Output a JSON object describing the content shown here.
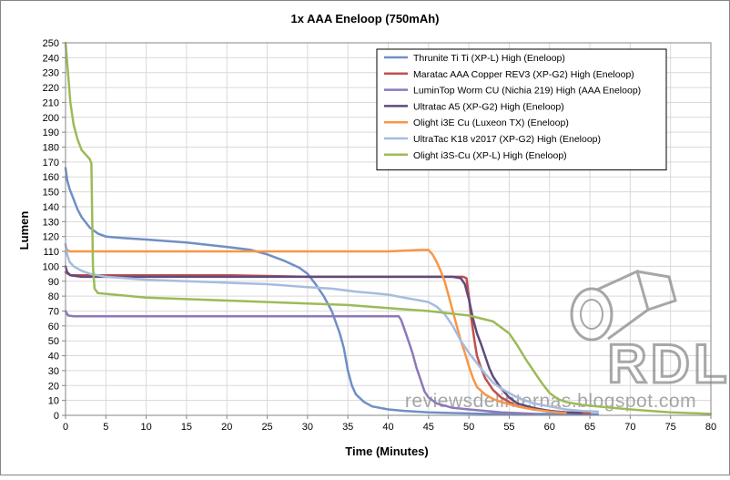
{
  "chart_data": {
    "type": "line",
    "title": "1x AAA Eneloop (750mAh)",
    "xlabel": "Time (Minutes)",
    "ylabel": "Lumen",
    "xlim": [
      0,
      80
    ],
    "ylim": [
      0,
      250
    ],
    "xticks": [
      0,
      5,
      10,
      15,
      20,
      25,
      30,
      35,
      40,
      45,
      50,
      55,
      60,
      65,
      70,
      75,
      80
    ],
    "yticks": [
      0,
      10,
      20,
      30,
      40,
      50,
      60,
      70,
      80,
      90,
      100,
      110,
      120,
      130,
      140,
      150,
      160,
      170,
      180,
      190,
      200,
      210,
      220,
      230,
      240,
      250
    ],
    "grid": true,
    "legend_position": "top-right",
    "watermark": {
      "logo_text": "RDL",
      "url": "reviewsdelinternas.blogspot.com"
    },
    "series": [
      {
        "name": "Thrunite Ti Ti (XP-L) High (Eneloop)",
        "color": "#6F8FC6",
        "points": [
          [
            0,
            166
          ],
          [
            0.2,
            158
          ],
          [
            0.5,
            152
          ],
          [
            1,
            145
          ],
          [
            1.5,
            138
          ],
          [
            2,
            133
          ],
          [
            3,
            126
          ],
          [
            4,
            122
          ],
          [
            5,
            120
          ],
          [
            7,
            119
          ],
          [
            10,
            118
          ],
          [
            15,
            116
          ],
          [
            20,
            113
          ],
          [
            23,
            111
          ],
          [
            25,
            108
          ],
          [
            27,
            104
          ],
          [
            29,
            99
          ],
          [
            30,
            95
          ],
          [
            31,
            88
          ],
          [
            32,
            80
          ],
          [
            33,
            70
          ],
          [
            34,
            55
          ],
          [
            34.5,
            45
          ],
          [
            35,
            30
          ],
          [
            35.5,
            20
          ],
          [
            36,
            14
          ],
          [
            37,
            9
          ],
          [
            38,
            6
          ],
          [
            40,
            4
          ],
          [
            42,
            3
          ],
          [
            45,
            2
          ],
          [
            48,
            1.5
          ],
          [
            52,
            1
          ],
          [
            58,
            1
          ],
          [
            63,
            1
          ],
          [
            66,
            0.8
          ]
        ]
      },
      {
        "name": "Maratac AAA Copper REV3 (XP-G2) High (Eneloop)",
        "color": "#C0504D",
        "points": [
          [
            0,
            96
          ],
          [
            0.3,
            95
          ],
          [
            0.6,
            94
          ],
          [
            3,
            94
          ],
          [
            10,
            94
          ],
          [
            20,
            94
          ],
          [
            30,
            93
          ],
          [
            40,
            93
          ],
          [
            45,
            93
          ],
          [
            49.3,
            93
          ],
          [
            49.7,
            92
          ],
          [
            50,
            80
          ],
          [
            50.3,
            65
          ],
          [
            50.7,
            50
          ],
          [
            51,
            40
          ],
          [
            51.5,
            32
          ],
          [
            52,
            25
          ],
          [
            53,
            17
          ],
          [
            54,
            12
          ],
          [
            55,
            9
          ],
          [
            56,
            6
          ],
          [
            57,
            5
          ],
          [
            58,
            4
          ],
          [
            60,
            3
          ],
          [
            62,
            2
          ],
          [
            65,
            1.5
          ]
        ]
      },
      {
        "name": "LuminTop Worm CU (Nichia 219) High (AAA Eneloop)",
        "color": "#8C7AB8",
        "points": [
          [
            0,
            70
          ],
          [
            0.3,
            67
          ],
          [
            1,
            66.5
          ],
          [
            10,
            66.5
          ],
          [
            20,
            66.5
          ],
          [
            30,
            66.5
          ],
          [
            35,
            66.5
          ],
          [
            40,
            66.5
          ],
          [
            41.3,
            66.5
          ],
          [
            41.6,
            64
          ],
          [
            42,
            58
          ],
          [
            42.5,
            50
          ],
          [
            43,
            42
          ],
          [
            43.5,
            32
          ],
          [
            44,
            24
          ],
          [
            44.5,
            16
          ],
          [
            45,
            12
          ],
          [
            46,
            8
          ],
          [
            48,
            5
          ],
          [
            50,
            4
          ],
          [
            52,
            3
          ],
          [
            54,
            2
          ],
          [
            56,
            1.5
          ],
          [
            58,
            1
          ]
        ]
      },
      {
        "name": "Ultratac A5 (XP-G2) High (Eneloop)",
        "color": "#604A7B",
        "points": [
          [
            0,
            100
          ],
          [
            0.2,
            96
          ],
          [
            0.6,
            94
          ],
          [
            2,
            93
          ],
          [
            10,
            93
          ],
          [
            20,
            93
          ],
          [
            30,
            93
          ],
          [
            40,
            93
          ],
          [
            48,
            93
          ],
          [
            49,
            92
          ],
          [
            49.5,
            88
          ],
          [
            50,
            78
          ],
          [
            50.5,
            65
          ],
          [
            51,
            55
          ],
          [
            51.5,
            48
          ],
          [
            52,
            40
          ],
          [
            52.5,
            32
          ],
          [
            53,
            26
          ],
          [
            54,
            18
          ],
          [
            55,
            12
          ],
          [
            56,
            8
          ],
          [
            58,
            5
          ],
          [
            60,
            3
          ],
          [
            62,
            2
          ],
          [
            64,
            1.5
          ]
        ]
      },
      {
        "name": "Olight i3E Cu (Luxeon TX) (Eneloop)",
        "color": "#F79646",
        "points": [
          [
            0,
            114
          ],
          [
            0.2,
            111
          ],
          [
            0.5,
            110
          ],
          [
            5,
            110
          ],
          [
            10,
            110
          ],
          [
            20,
            110
          ],
          [
            30,
            110
          ],
          [
            40,
            110
          ],
          [
            44,
            111
          ],
          [
            45,
            111
          ],
          [
            45.5,
            108
          ],
          [
            46,
            103
          ],
          [
            46.5,
            97
          ],
          [
            47,
            90
          ],
          [
            47.5,
            80
          ],
          [
            48,
            70
          ],
          [
            48.5,
            60
          ],
          [
            49,
            50
          ],
          [
            49.5,
            42
          ],
          [
            50,
            33
          ],
          [
            50.5,
            25
          ],
          [
            51,
            19
          ],
          [
            52,
            14
          ],
          [
            53,
            11
          ],
          [
            54,
            9
          ],
          [
            56,
            6
          ],
          [
            58,
            4
          ],
          [
            60,
            2.5
          ],
          [
            62,
            1.5
          ]
        ]
      },
      {
        "name": "UltraTac K18 v2017 (XP-G2) High (Eneloop)",
        "color": "#A6BCDD",
        "points": [
          [
            0,
            115
          ],
          [
            0.2,
            108
          ],
          [
            0.5,
            103
          ],
          [
            1,
            100
          ],
          [
            2,
            97
          ],
          [
            3,
            95
          ],
          [
            5,
            93
          ],
          [
            10,
            91
          ],
          [
            15,
            90
          ],
          [
            20,
            89
          ],
          [
            25,
            88
          ],
          [
            30,
            86
          ],
          [
            33,
            85
          ],
          [
            36,
            83
          ],
          [
            38,
            82
          ],
          [
            40,
            81
          ],
          [
            42,
            79
          ],
          [
            44,
            77
          ],
          [
            45,
            76
          ],
          [
            46,
            73
          ],
          [
            47,
            68
          ],
          [
            48,
            60
          ],
          [
            49,
            50
          ],
          [
            50,
            42
          ],
          [
            51,
            35
          ],
          [
            52,
            28
          ],
          [
            53,
            22
          ],
          [
            54,
            18
          ],
          [
            55,
            15
          ],
          [
            56,
            12
          ],
          [
            58,
            8
          ],
          [
            60,
            6
          ],
          [
            62,
            4
          ],
          [
            64,
            3
          ],
          [
            66,
            2.5
          ]
        ]
      },
      {
        "name": "Olight i3S-Cu (XP-L) High (Eneloop)",
        "color": "#9BBB59",
        "points": [
          [
            0,
            250
          ],
          [
            0.3,
            230
          ],
          [
            0.6,
            210
          ],
          [
            1,
            195
          ],
          [
            1.5,
            185
          ],
          [
            2,
            178
          ],
          [
            3,
            172
          ],
          [
            3.2,
            169
          ],
          [
            3.4,
            100
          ],
          [
            3.6,
            85
          ],
          [
            4,
            82
          ],
          [
            10,
            79
          ],
          [
            20,
            77
          ],
          [
            30,
            75
          ],
          [
            35,
            74
          ],
          [
            40,
            72
          ],
          [
            45,
            70
          ],
          [
            50,
            67
          ],
          [
            53,
            63
          ],
          [
            55,
            55
          ],
          [
            56,
            47
          ],
          [
            57,
            38
          ],
          [
            58,
            30
          ],
          [
            59,
            22
          ],
          [
            60,
            15
          ],
          [
            61,
            11
          ],
          [
            62,
            9
          ],
          [
            64,
            7
          ],
          [
            66,
            6
          ],
          [
            70,
            4
          ],
          [
            75,
            2
          ],
          [
            80,
            1
          ]
        ]
      }
    ]
  }
}
